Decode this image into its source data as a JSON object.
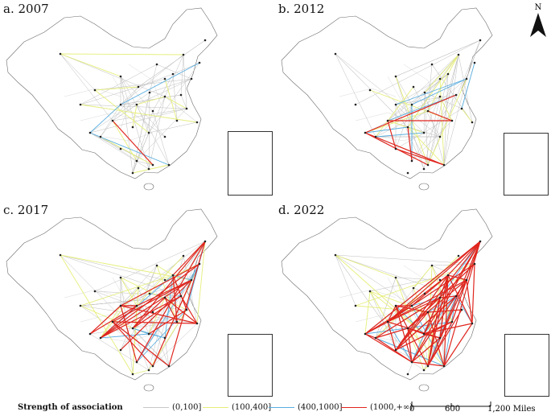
{
  "panels": [
    {
      "id": "a",
      "title": "a. 2007",
      "density": {
        "gray": 60,
        "yellow": 12,
        "blue": 3,
        "red": 1
      }
    },
    {
      "id": "b",
      "title": "b. 2012",
      "density": {
        "gray": 70,
        "yellow": 14,
        "blue": 8,
        "red": 8
      }
    },
    {
      "id": "c",
      "title": "c. 2017",
      "density": {
        "gray": 60,
        "yellow": 24,
        "blue": 14,
        "red": 30
      }
    },
    {
      "id": "d",
      "title": "d. 2022",
      "density": {
        "gray": 45,
        "yellow": 24,
        "blue": 22,
        "red": 70
      }
    }
  ],
  "north_label": "N",
  "legend": {
    "title": "Strength of association",
    "items": [
      {
        "label": "(0,100]",
        "color": "#c8c8c8"
      },
      {
        "label": "(100,400]",
        "color": "#e6ee7a"
      },
      {
        "label": "(400,1000]",
        "color": "#5aaee0"
      },
      {
        "label": "(1000,+∞)",
        "color": "#e0261e"
      }
    ]
  },
  "scale_bar": {
    "labels": [
      "0",
      "600",
      "1,200 Miles"
    ]
  },
  "colors": {
    "outline": "#6b6b6b",
    "node": "#222222"
  }
}
